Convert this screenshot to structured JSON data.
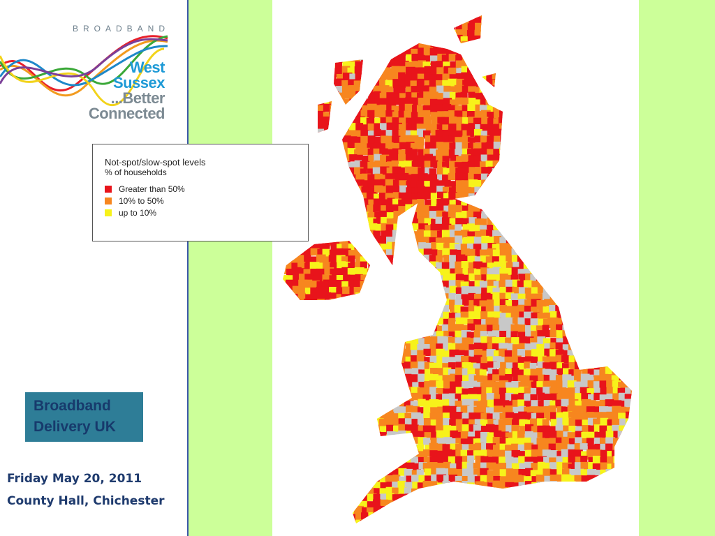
{
  "logo": {
    "tagline": "BROADBAND",
    "lines": [
      "West",
      "Sussex",
      "...Better",
      "Connected"
    ]
  },
  "legend": {
    "title": "Not-spot/slow-spot levels",
    "subtitle": "% of households",
    "items": [
      {
        "label": "Greater than 50%",
        "color": "#e8141b"
      },
      {
        "label": "10% to 50%",
        "color": "#f7861f"
      },
      {
        "label": "up to 10%",
        "color": "#f7f21a"
      }
    ]
  },
  "badge": {
    "lines": [
      "Broadband",
      "Delivery UK"
    ]
  },
  "footer": {
    "date": "Friday May 20, 2011",
    "place": "County Hall, Chichester"
  }
}
